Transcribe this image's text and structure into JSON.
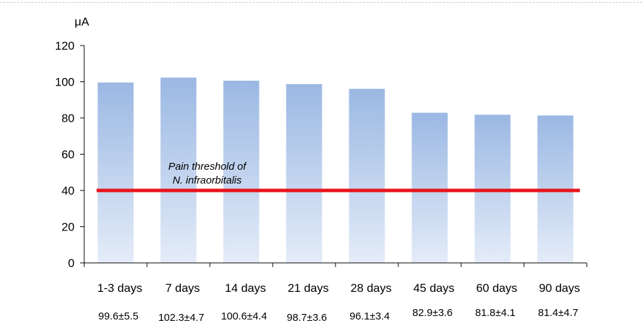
{
  "chart_data": {
    "type": "bar",
    "ylabel": "μA",
    "ylim": [
      0,
      120
    ],
    "yticks": [
      0,
      20,
      40,
      60,
      80,
      100,
      120
    ],
    "categories": [
      "1-3 days",
      "7 days",
      "14 days",
      "21 days",
      "28 days",
      "45 days",
      "60 days",
      "90 days"
    ],
    "values": [
      99.6,
      102.3,
      100.6,
      98.7,
      96.1,
      82.9,
      81.8,
      81.4
    ],
    "value_labels": [
      "99.6±5.5",
      "102.3±4.7",
      "100.6±4.4",
      "98.7±3.6",
      "96.1±3.4",
      "82.9±3.6",
      "81.8±4.1",
      "81.4±4.7"
    ],
    "threshold": {
      "value": 40,
      "label_line1": "Pain threshold of",
      "label_line2": "N. infraorbitalis",
      "color": "#e8141c"
    },
    "bar_color_top": "#9bb8e3",
    "bar_color_bottom": "#e4ecf8",
    "grid": false
  }
}
